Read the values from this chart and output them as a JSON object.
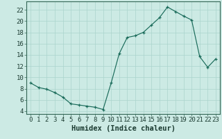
{
  "x": [
    0,
    1,
    2,
    3,
    4,
    5,
    6,
    7,
    8,
    9,
    10,
    11,
    12,
    13,
    14,
    15,
    16,
    17,
    18,
    19,
    20,
    21,
    22,
    23
  ],
  "y": [
    9.0,
    8.2,
    7.9,
    7.3,
    6.5,
    5.3,
    5.1,
    4.9,
    4.7,
    4.3,
    9.0,
    14.2,
    17.1,
    17.4,
    18.0,
    19.3,
    20.6,
    22.5,
    21.7,
    20.9,
    20.2,
    13.7,
    11.8,
    13.3
  ],
  "xlabel": "Humidex (Indice chaleur)",
  "xlim": [
    -0.5,
    23.5
  ],
  "ylim": [
    3.5,
    23.5
  ],
  "yticks": [
    4,
    6,
    8,
    10,
    12,
    14,
    16,
    18,
    20,
    22
  ],
  "xticks": [
    0,
    1,
    2,
    3,
    4,
    5,
    6,
    7,
    8,
    9,
    10,
    11,
    12,
    13,
    14,
    15,
    16,
    17,
    18,
    19,
    20,
    21,
    22,
    23
  ],
  "line_color": "#1a6b5a",
  "marker": "+",
  "bg_color": "#cceae4",
  "grid_color": "#aad4cc",
  "tick_label_fontsize": 6.5,
  "xlabel_fontsize": 7.5
}
